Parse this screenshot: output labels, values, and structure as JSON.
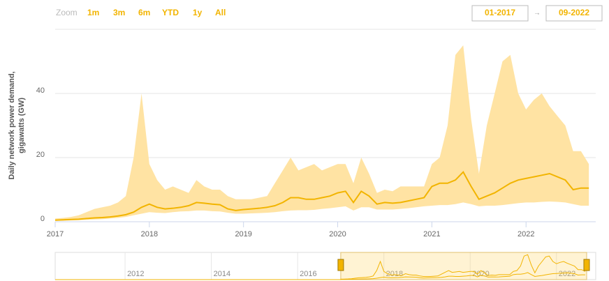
{
  "chart_data": {
    "type": "range_line",
    "zoom_label": "Zoom",
    "zoom_buttons": [
      "1m",
      "3m",
      "6m",
      "YTD",
      "1y",
      "All"
    ],
    "date_from": "01-2017",
    "date_arrow": "→",
    "date_to": "09-2022",
    "ylabel": [
      "Daily network power demand,",
      "gigawatts (GW)"
    ],
    "xlim": [
      2017,
      2022.74
    ],
    "xticks": [
      2017,
      2018,
      2019,
      2020,
      2021,
      2022
    ],
    "ylim": [
      0,
      60
    ],
    "yticks": [
      0,
      20,
      40
    ],
    "grid": true,
    "x": [
      2017,
      2017.083,
      2017.167,
      2017.25,
      2017.333,
      2017.417,
      2017.5,
      2017.583,
      2017.667,
      2017.75,
      2017.833,
      2017.917,
      2018,
      2018.083,
      2018.167,
      2018.25,
      2018.333,
      2018.417,
      2018.5,
      2018.583,
      2018.667,
      2018.75,
      2018.833,
      2018.917,
      2019,
      2019.083,
      2019.167,
      2019.25,
      2019.333,
      2019.417,
      2019.5,
      2019.583,
      2019.667,
      2019.75,
      2019.833,
      2019.917,
      2020,
      2020.083,
      2020.167,
      2020.25,
      2020.333,
      2020.417,
      2020.5,
      2020.583,
      2020.667,
      2020.75,
      2020.833,
      2020.917,
      2021,
      2021.083,
      2021.167,
      2021.25,
      2021.333,
      2021.417,
      2021.5,
      2021.583,
      2021.667,
      2021.75,
      2021.833,
      2021.917,
      2022,
      2022.083,
      2022.167,
      2022.25,
      2022.333,
      2022.417,
      2022.5,
      2022.583,
      2022.667
    ],
    "range": {
      "color": "#ffe3a3",
      "low": [
        0.3,
        0.3,
        0.4,
        0.5,
        0.6,
        0.7,
        0.8,
        1,
        1.2,
        1.5,
        2,
        2.5,
        3,
        2.8,
        2.7,
        3,
        3.2,
        3.3,
        3.5,
        3.5,
        3.3,
        3.2,
        2.8,
        2.5,
        2.5,
        2.6,
        2.7,
        2.8,
        3,
        3.3,
        3.5,
        3.6,
        3.6,
        3.7,
        4,
        4.2,
        4.5,
        4.8,
        3.5,
        4.5,
        4.5,
        3.8,
        3.8,
        3.8,
        4,
        4.2,
        4.5,
        4.8,
        5,
        5.2,
        5.2,
        5.5,
        6,
        5.5,
        4.8,
        5,
        5,
        5.2,
        5.5,
        5.8,
        6,
        6,
        6.2,
        6.3,
        6.2,
        6,
        5.5,
        5,
        5
      ],
      "high": [
        1,
        1.2,
        1.5,
        2,
        3,
        4,
        4.5,
        5,
        6,
        8,
        20,
        40,
        18,
        13,
        10,
        11,
        10,
        9,
        13,
        11,
        10,
        10,
        8,
        7,
        7,
        7,
        7.5,
        8,
        12,
        16,
        20,
        16,
        17,
        18,
        16,
        17,
        18,
        18,
        12,
        20,
        15,
        9,
        10,
        9.5,
        11,
        11,
        11,
        11,
        18,
        20,
        30,
        52,
        55,
        32,
        15,
        30,
        40,
        50,
        52,
        40,
        35,
        38,
        40,
        36,
        33,
        30,
        22,
        22,
        18
      ]
    },
    "series": [
      {
        "color": "#f2b400",
        "values": [
          0.5,
          0.6,
          0.7,
          0.8,
          1,
          1.2,
          1.3,
          1.5,
          1.8,
          2.2,
          3,
          4.5,
          5.5,
          4.5,
          4,
          4.2,
          4.5,
          5,
          6,
          5.8,
          5.5,
          5.3,
          4,
          3.5,
          3.8,
          4,
          4.2,
          4.5,
          5,
          6,
          7.5,
          7.5,
          7,
          7,
          7.5,
          8,
          9,
          9.5,
          6,
          9.5,
          8,
          5.5,
          6,
          5.8,
          6,
          6.5,
          7,
          7.5,
          11,
          12,
          12,
          13,
          15.5,
          11,
          7,
          8,
          9,
          10.5,
          12,
          13,
          13.5,
          14,
          14.5,
          15,
          14,
          13,
          10,
          10.5,
          10.5
        ]
      }
    ],
    "navigator": {
      "xlim": [
        2010.38,
        2022.7
      ],
      "xticks": [
        2012,
        2014,
        2016,
        2018,
        2020,
        2022
      ]
    }
  }
}
